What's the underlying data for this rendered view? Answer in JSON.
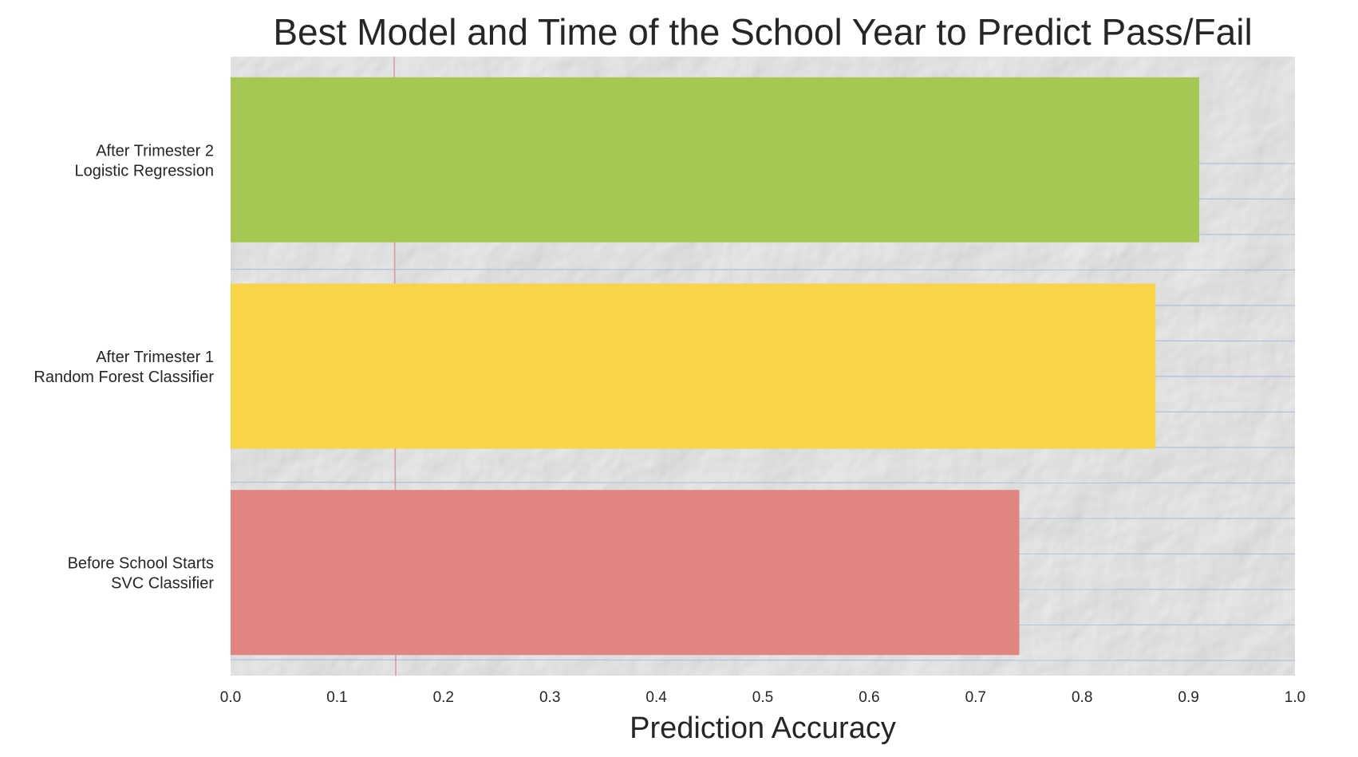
{
  "chart_data": {
    "type": "bar",
    "orientation": "horizontal",
    "title": "Best Model and Time of the School Year to Predict Pass/Fail",
    "xlabel": "Prediction Accuracy",
    "ylabel": "",
    "xlim": [
      0.0,
      1.0
    ],
    "xticks": [
      "0.0",
      "0.1",
      "0.2",
      "0.3",
      "0.4",
      "0.5",
      "0.6",
      "0.7",
      "0.8",
      "0.9",
      "1.0"
    ],
    "grid": false,
    "background": "crumpled lined notebook paper",
    "categories": [
      {
        "line1": "After Trimester 2",
        "line2": "Logistic Regression"
      },
      {
        "line1": "After Trimester 1",
        "line2": "Random Forest Classifier"
      },
      {
        "line1": "Before School Starts",
        "line2": "SVC Classifier"
      }
    ],
    "values": [
      0.91,
      0.869,
      0.741
    ],
    "colors": [
      "#a5c853",
      "#f9d446",
      "#e18580"
    ]
  }
}
